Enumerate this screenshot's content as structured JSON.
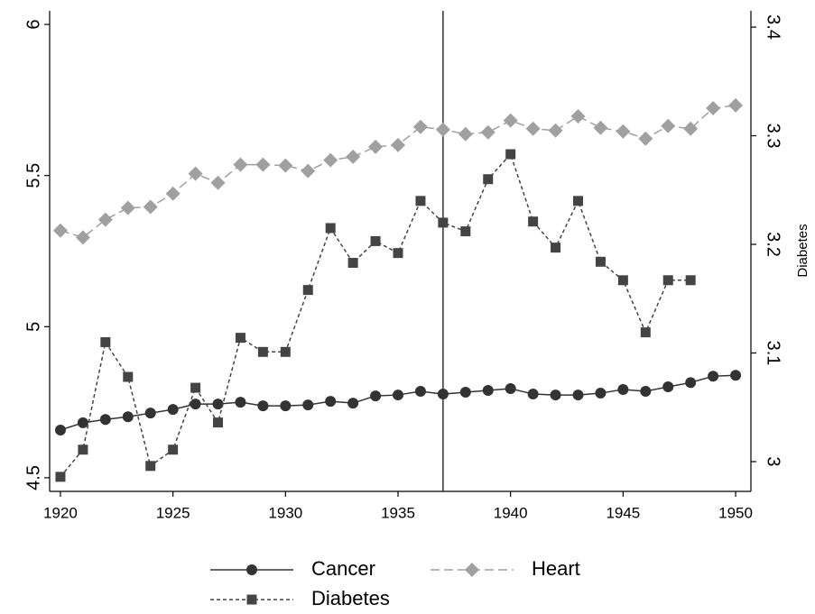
{
  "chart_data": {
    "type": "line",
    "x": [
      1920,
      1921,
      1922,
      1923,
      1924,
      1925,
      1926,
      1927,
      1928,
      1929,
      1930,
      1931,
      1932,
      1933,
      1934,
      1935,
      1936,
      1937,
      1938,
      1939,
      1940,
      1941,
      1942,
      1943,
      1944,
      1945,
      1946,
      1947,
      1948,
      1949,
      1950
    ],
    "xlim": [
      1919.52,
      1950.68
    ],
    "xticks": [
      1920,
      1925,
      1930,
      1935,
      1940,
      1945,
      1950
    ],
    "ylim": [
      4.455,
      6.045
    ],
    "yticks": [
      4.5,
      5,
      5.5,
      6
    ],
    "y2lim": [
      2.9726,
      3.415
    ],
    "y2ticks": [
      3,
      3.1,
      3.2,
      3.3,
      3.4
    ],
    "y2label": "Diabetes",
    "vline": 1937,
    "series": [
      {
        "name": "Cancer",
        "color": "#333333",
        "marker": "circle",
        "dash": "solid",
        "values": [
          4.658,
          4.682,
          4.693,
          4.702,
          4.714,
          4.726,
          4.744,
          4.744,
          4.75,
          4.738,
          4.738,
          4.741,
          4.753,
          4.747,
          4.771,
          4.774,
          4.786,
          4.777,
          4.783,
          4.789,
          4.795,
          4.777,
          4.774,
          4.774,
          4.78,
          4.792,
          4.786,
          4.801,
          4.815,
          4.836,
          4.839
        ]
      },
      {
        "name": "Heart",
        "color": "#a0a0a0",
        "marker": "diamond",
        "dash": "long",
        "values": [
          5.318,
          5.295,
          5.354,
          5.393,
          5.396,
          5.44,
          5.506,
          5.476,
          5.536,
          5.536,
          5.533,
          5.515,
          5.551,
          5.562,
          5.595,
          5.601,
          5.661,
          5.652,
          5.637,
          5.643,
          5.682,
          5.655,
          5.649,
          5.696,
          5.658,
          5.646,
          5.622,
          5.664,
          5.655,
          5.723,
          5.732
        ]
      },
      {
        "name": "Diabetes",
        "color": "#444444",
        "marker": "square",
        "dash": "short",
        "axis": "y2",
        "values": [
          2.986,
          3.011,
          3.11,
          3.078,
          2.996,
          3.011,
          3.068,
          3.036,
          3.114,
          3.101,
          3.101,
          3.158,
          3.215,
          3.183,
          3.203,
          3.192,
          3.24,
          3.22,
          3.212,
          3.26,
          3.283,
          3.221,
          3.197,
          3.24,
          3.184,
          3.167,
          3.119,
          3.167,
          3.167,
          null,
          null
        ]
      }
    ]
  }
}
